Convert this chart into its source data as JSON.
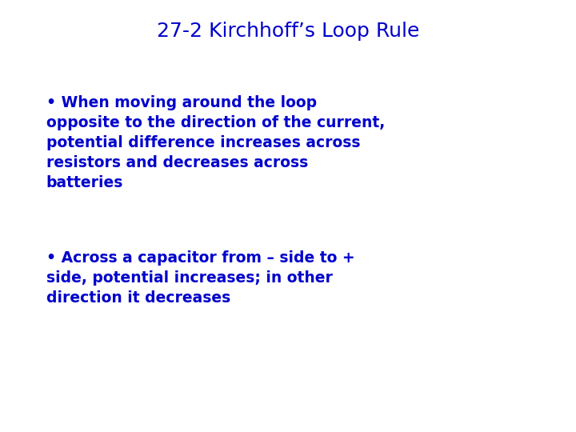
{
  "title": "27-2 Kirchhoff’s Loop Rule",
  "title_color": "#0000CC",
  "title_fontsize": 18,
  "title_fontweight": "normal",
  "bullet1": "• When moving around the loop\nopposite to the direction of the current,\npotential difference increases across\nresistors and decreases across\nbatteries",
  "bullet2": "• Across a capacitor from – side to +\nside, potential increases; in other\ndirection it decreases",
  "text_color": "#0000CC",
  "text_fontsize": 13.5,
  "text_fontweight": "bold",
  "bg_color": "#FFFFFF",
  "figsize": [
    7.2,
    5.4
  ],
  "dpi": 100
}
